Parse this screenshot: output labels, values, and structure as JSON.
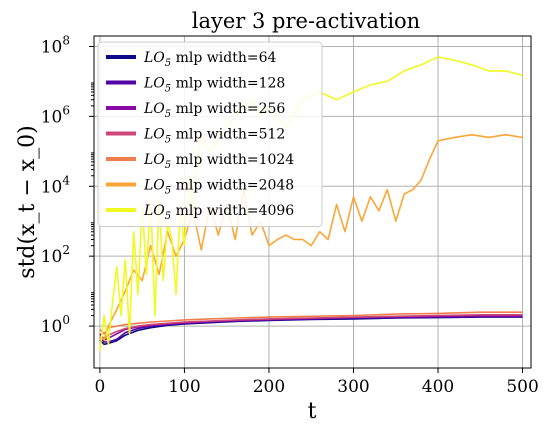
{
  "chart_data": {
    "type": "line",
    "title": "layer 3 pre-activation",
    "xlabel": "t",
    "ylabel": "std(x_t − x_0)",
    "xlim": [
      -7,
      510
    ],
    "ylim_log10": [
      -1.2,
      8.3
    ],
    "y_scale": "log",
    "x_ticks": [
      0,
      100,
      200,
      300,
      400,
      500
    ],
    "y_ticks": [
      {
        "exp": 0,
        "label_base": "10",
        "label_exp": "0"
      },
      {
        "exp": 2,
        "label_base": "10",
        "label_exp": "2"
      },
      {
        "exp": 4,
        "label_base": "10",
        "label_exp": "4"
      },
      {
        "exp": 6,
        "label_base": "10",
        "label_exp": "6"
      },
      {
        "exp": 8,
        "label_base": "10",
        "label_exp": "8"
      }
    ],
    "grid": true,
    "legend_placement": "upper-left",
    "legend_prefix": "LO",
    "legend_sub": "5",
    "series": [
      {
        "name": " mlp width=64",
        "color": "#0d0887",
        "x": [
          0,
          5,
          10,
          20,
          30,
          45,
          60,
          80,
          100,
          130,
          160,
          200,
          250,
          300,
          350,
          400,
          450,
          500
        ],
        "y": [
          0.4,
          0.3,
          0.32,
          0.38,
          0.55,
          0.75,
          0.9,
          1.05,
          1.15,
          1.25,
          1.35,
          1.45,
          1.55,
          1.6,
          1.7,
          1.75,
          1.8,
          1.8
        ]
      },
      {
        "name": " mlp width=128",
        "color": "#5302a3",
        "x": [
          0,
          5,
          10,
          20,
          30,
          45,
          60,
          80,
          100,
          130,
          160,
          200,
          250,
          300,
          350,
          400,
          450,
          500
        ],
        "y": [
          0.5,
          0.35,
          0.35,
          0.42,
          0.65,
          0.85,
          1.0,
          1.1,
          1.2,
          1.3,
          1.4,
          1.5,
          1.6,
          1.7,
          1.75,
          1.8,
          1.85,
          1.85
        ]
      },
      {
        "name": " mlp width=256",
        "color": "#8b0aa5",
        "x": [
          0,
          5,
          10,
          20,
          30,
          45,
          60,
          80,
          100,
          130,
          160,
          200,
          250,
          300,
          350,
          400,
          450,
          500
        ],
        "y": [
          0.6,
          0.4,
          0.45,
          0.6,
          0.8,
          0.95,
          1.05,
          1.15,
          1.25,
          1.35,
          1.45,
          1.55,
          1.65,
          1.75,
          1.85,
          1.9,
          1.95,
          1.95
        ]
      },
      {
        "name": " mlp width=512",
        "color": "#cc4778",
        "x": [
          0,
          5,
          10,
          20,
          30,
          45,
          60,
          80,
          100,
          130,
          160,
          200,
          250,
          300,
          350,
          400,
          450,
          500
        ],
        "y": [
          0.5,
          0.45,
          0.55,
          0.7,
          0.85,
          1.0,
          1.1,
          1.2,
          1.3,
          1.4,
          1.5,
          1.6,
          1.7,
          1.8,
          1.9,
          2.0,
          2.1,
          2.1
        ]
      },
      {
        "name": " mlp width=1024",
        "color": "#f07f4f",
        "x": [
          0,
          5,
          10,
          20,
          30,
          45,
          60,
          80,
          100,
          130,
          160,
          200,
          250,
          300,
          350,
          400,
          450,
          500
        ],
        "y": [
          0.8,
          0.6,
          0.9,
          1.0,
          1.1,
          1.2,
          1.3,
          1.4,
          1.5,
          1.6,
          1.7,
          1.8,
          1.9,
          2.0,
          2.2,
          2.3,
          2.5,
          2.5
        ]
      },
      {
        "name": " mlp width=2048",
        "color": "#fca636",
        "x": [
          0,
          5,
          10,
          20,
          30,
          40,
          50,
          60,
          70,
          80,
          90,
          100,
          110,
          120,
          130,
          140,
          150,
          160,
          170,
          180,
          190,
          200,
          210,
          220,
          230,
          240,
          250,
          260,
          270,
          280,
          290,
          300,
          310,
          320,
          330,
          340,
          350,
          360,
          370,
          380,
          390,
          400,
          420,
          440,
          460,
          480,
          500
        ],
        "y": [
          0.5,
          0.4,
          1.0,
          3,
          10,
          40,
          20,
          200,
          30,
          500,
          100,
          300,
          2000,
          150,
          3000,
          400,
          3000,
          300,
          8000,
          400,
          1000,
          200,
          300,
          400,
          300,
          300,
          200,
          500,
          300,
          3000,
          500,
          5000,
          1000,
          5000,
          2000,
          8000,
          1000,
          6000,
          8000,
          15000,
          60000,
          200000,
          250000,
          300000,
          250000,
          300000,
          250000
        ]
      },
      {
        "name": " mlp width=4096",
        "color": "#f0f921",
        "x": [
          0,
          5,
          10,
          15,
          20,
          25,
          30,
          35,
          40,
          45,
          50,
          55,
          60,
          65,
          70,
          75,
          80,
          85,
          90,
          95,
          100,
          105,
          110,
          115,
          120,
          130,
          140,
          150,
          160,
          170,
          180,
          190,
          200,
          220,
          240,
          260,
          280,
          300,
          320,
          340,
          360,
          380,
          400,
          420,
          440,
          460,
          480,
          500
        ],
        "y": [
          0.2,
          2,
          0.3,
          5,
          50,
          2,
          80,
          0.6,
          500,
          8,
          3000,
          30,
          5000,
          2,
          4000,
          20,
          1000,
          300,
          8,
          2000,
          200,
          20000,
          2000,
          50000,
          300000,
          100000,
          200000,
          500000,
          1000000,
          2000000,
          3000000,
          1000000,
          2000000,
          500000,
          3000000,
          5000000,
          3000000,
          5000000,
          8000000,
          10000000,
          20000000,
          30000000,
          50000000,
          40000000,
          30000000,
          20000000,
          20000000,
          15000000
        ]
      }
    ]
  }
}
